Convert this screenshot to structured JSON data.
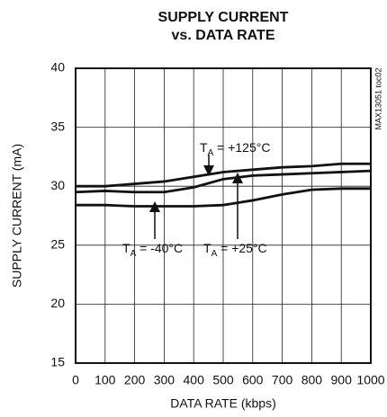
{
  "chart_data": {
    "type": "line",
    "title": "SUPPLY CURRENT",
    "subtitle": "vs. DATA RATE",
    "x_label": "DATA RATE (kbps)",
    "y_label": "SUPPLY CURRENT (mA)",
    "side_note": "MAX13051 toc02",
    "x": [
      0,
      100,
      200,
      300,
      400,
      500,
      600,
      700,
      800,
      900,
      1000
    ],
    "series": [
      {
        "name": "TA = +125°C",
        "color": "#111111",
        "values": [
          30.0,
          30.0,
          30.2,
          30.4,
          30.8,
          31.2,
          31.4,
          31.6,
          31.7,
          31.9,
          31.9
        ]
      },
      {
        "name": "TA = +25°C",
        "color": "#111111",
        "values": [
          29.5,
          29.6,
          29.5,
          29.5,
          29.9,
          30.6,
          30.9,
          31.0,
          31.1,
          31.2,
          31.3
        ]
      },
      {
        "name": "TA = -40°C",
        "color": "#111111",
        "values": [
          28.4,
          28.4,
          28.3,
          28.3,
          28.3,
          28.4,
          28.8,
          29.3,
          29.7,
          29.8,
          29.8
        ]
      }
    ],
    "xlim": [
      0,
      1000
    ],
    "xticks": [
      0,
      100,
      200,
      300,
      400,
      500,
      600,
      700,
      800,
      900,
      1000
    ],
    "ylim": [
      15,
      40
    ],
    "yticks": [
      15,
      20,
      25,
      30,
      35,
      40
    ],
    "grid": true
  }
}
